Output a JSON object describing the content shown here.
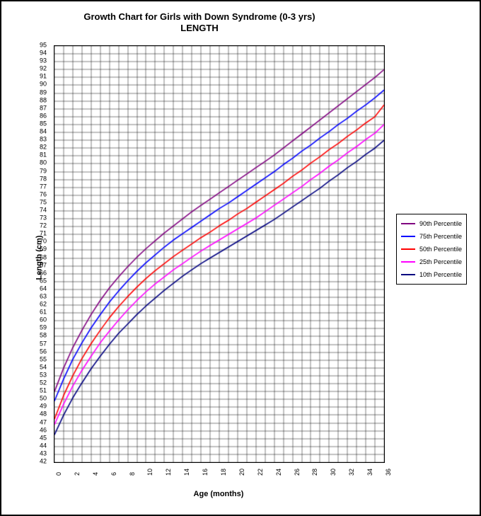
{
  "chart": {
    "type": "line",
    "title_line1": "Growth Chart for Girls with Down Syndrome (0-3 yrs)",
    "title_line2": "LENGTH",
    "title_fontsize": 13,
    "x_axis_title": "Age (months)",
    "y_axis_title": "Length (cm)",
    "axis_title_fontsize": 11,
    "tick_fontsize": 9,
    "background_color": "#ffffff",
    "grid_color": "#000000",
    "grid_linewidth": 0.5,
    "border_color": "#000000",
    "xlim": [
      0,
      36
    ],
    "xtick_step_major": 2,
    "xtick_step_minor": 1,
    "x_labels_rotation": -90,
    "ylim": [
      42,
      95
    ],
    "ytick_step_major": 1,
    "line_width": 1.6,
    "series": [
      {
        "name": "90th Percentile",
        "color": "#800080",
        "x": [
          0,
          1,
          2,
          3,
          4,
          5,
          6,
          7,
          8,
          9,
          10,
          11,
          12,
          13,
          14,
          15,
          16,
          17,
          18,
          19,
          20,
          21,
          22,
          23,
          24,
          25,
          26,
          27,
          28,
          29,
          30,
          31,
          32,
          33,
          34,
          35,
          36
        ],
        "y": [
          51.0,
          54.0,
          56.6,
          58.8,
          60.8,
          62.6,
          64.2,
          65.6,
          66.9,
          68.1,
          69.2,
          70.2,
          71.2,
          72.1,
          73.0,
          73.9,
          74.7,
          75.5,
          76.3,
          77.1,
          77.9,
          78.7,
          79.5,
          80.3,
          81.1,
          82.0,
          82.9,
          83.8,
          84.7,
          85.6,
          86.5,
          87.4,
          88.3,
          89.2,
          90.1,
          91.0,
          92.0
        ]
      },
      {
        "name": "75th Percentile",
        "color": "#0000ff",
        "x": [
          0,
          1,
          2,
          3,
          4,
          5,
          6,
          7,
          8,
          9,
          10,
          11,
          12,
          13,
          14,
          15,
          16,
          17,
          18,
          19,
          20,
          21,
          22,
          23,
          24,
          25,
          26,
          27,
          28,
          29,
          30,
          31,
          32,
          33,
          34,
          35,
          36
        ],
        "y": [
          49.8,
          52.6,
          55.1,
          57.2,
          59.1,
          60.8,
          62.4,
          63.8,
          65.1,
          66.3,
          67.4,
          68.4,
          69.4,
          70.3,
          71.1,
          71.9,
          72.7,
          73.5,
          74.3,
          75.0,
          75.8,
          76.6,
          77.4,
          78.2,
          79.0,
          79.9,
          80.7,
          81.6,
          82.4,
          83.3,
          84.1,
          85.0,
          85.8,
          86.7,
          87.5,
          88.4,
          89.4
        ]
      },
      {
        "name": "50th Percentile",
        "color": "#ff0000",
        "x": [
          0,
          1,
          2,
          3,
          4,
          5,
          6,
          7,
          8,
          9,
          10,
          11,
          12,
          13,
          14,
          15,
          16,
          17,
          18,
          19,
          20,
          21,
          22,
          23,
          24,
          25,
          26,
          27,
          28,
          29,
          30,
          31,
          32,
          33,
          34,
          35,
          36
        ],
        "y": [
          47.5,
          50.5,
          53.0,
          55.2,
          57.1,
          58.8,
          60.4,
          61.8,
          63.1,
          64.3,
          65.4,
          66.4,
          67.3,
          68.2,
          69.0,
          69.8,
          70.6,
          71.3,
          72.1,
          72.8,
          73.6,
          74.3,
          75.1,
          75.9,
          76.7,
          77.5,
          78.4,
          79.2,
          80.1,
          80.9,
          81.8,
          82.6,
          83.5,
          84.3,
          85.2,
          86.0,
          87.5
        ]
      },
      {
        "name": "25th Percentile",
        "color": "#ff00ff",
        "x": [
          0,
          1,
          2,
          3,
          4,
          5,
          6,
          7,
          8,
          9,
          10,
          11,
          12,
          13,
          14,
          15,
          16,
          17,
          18,
          19,
          20,
          21,
          22,
          23,
          24,
          25,
          26,
          27,
          28,
          29,
          30,
          31,
          32,
          33,
          34,
          35,
          36
        ],
        "y": [
          46.8,
          49.4,
          51.7,
          53.7,
          55.5,
          57.2,
          58.7,
          60.1,
          61.4,
          62.6,
          63.7,
          64.7,
          65.6,
          66.5,
          67.3,
          68.1,
          68.9,
          69.6,
          70.3,
          71.0,
          71.7,
          72.4,
          73.1,
          73.9,
          74.7,
          75.5,
          76.3,
          77.1,
          78.0,
          78.8,
          79.7,
          80.5,
          81.4,
          82.2,
          83.1,
          83.9,
          85.0
        ]
      },
      {
        "name": "10th Percentile",
        "color": "#000080",
        "x": [
          0,
          1,
          2,
          3,
          4,
          5,
          6,
          7,
          8,
          9,
          10,
          11,
          12,
          13,
          14,
          15,
          16,
          17,
          18,
          19,
          20,
          21,
          22,
          23,
          24,
          25,
          26,
          27,
          28,
          29,
          30,
          31,
          32,
          33,
          34,
          35,
          36
        ],
        "y": [
          45.5,
          48.0,
          50.2,
          52.1,
          53.9,
          55.5,
          57.0,
          58.4,
          59.6,
          60.8,
          61.9,
          62.9,
          63.9,
          64.8,
          65.7,
          66.5,
          67.3,
          68.0,
          68.7,
          69.4,
          70.1,
          70.8,
          71.5,
          72.2,
          72.9,
          73.7,
          74.5,
          75.3,
          76.1,
          76.9,
          77.8,
          78.6,
          79.5,
          80.3,
          81.2,
          82.0,
          83.0
        ]
      }
    ],
    "legend": {
      "position": "right",
      "fontsize": 9,
      "border_color": "#000000",
      "background": "#ffffff"
    }
  }
}
